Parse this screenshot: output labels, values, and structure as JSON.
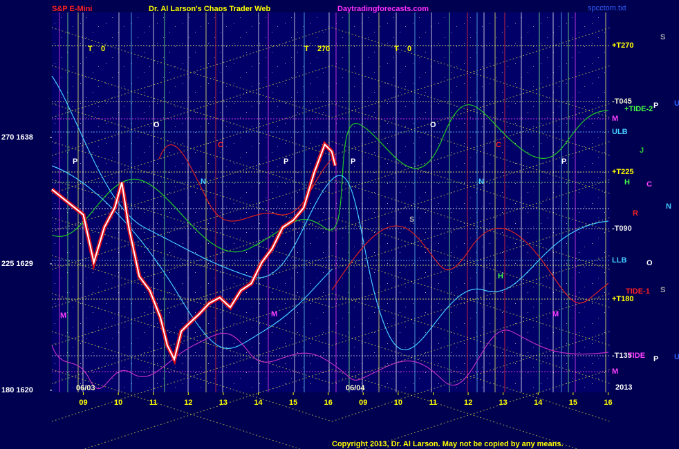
{
  "chart_data": {
    "type": "line",
    "title": "Dr. Al Larson's Chaos Trader Web",
    "symbol": "S&P E-Mini",
    "site": "Daytradingforecasts.com",
    "file": "spcctom.txt",
    "copyright": "Copyright 2013, Dr. Al Larson. May not be copied by any means.",
    "ylim": [
      1619.85,
      1646.9
    ],
    "yticks": [
      {
        "value": 1620,
        "label": "180  1620"
      },
      {
        "value": 1629,
        "label": "225  1629"
      },
      {
        "value": 1638,
        "label": "270  1638"
      }
    ],
    "xlim": [
      -0.9,
      15.05
    ],
    "xticks": [
      {
        "value": 0,
        "label": "09"
      },
      {
        "value": 1,
        "label": "10"
      },
      {
        "value": 2,
        "label": "11"
      },
      {
        "value": 3,
        "label": "12"
      },
      {
        "value": 4,
        "label": "13"
      },
      {
        "value": 5,
        "label": "14"
      },
      {
        "value": 6,
        "label": "15"
      },
      {
        "value": 7,
        "label": "16"
      },
      {
        "value": 8,
        "label": "09"
      },
      {
        "value": 9,
        "label": "10"
      },
      {
        "value": 10,
        "label": "11"
      },
      {
        "value": 11,
        "label": "12"
      },
      {
        "value": 12,
        "label": "13"
      },
      {
        "value": 13,
        "label": "14"
      },
      {
        "value": 14,
        "label": "15"
      },
      {
        "value": 15,
        "label": "16"
      }
    ],
    "dates": [
      "06/03",
      "06/04"
    ],
    "series": [
      {
        "color": "#ffffff",
        "x": [
          -0.9,
          -0.5,
          0,
          0.3,
          0.6,
          0.9,
          1.1,
          1.3,
          1.6,
          1.9,
          2.2,
          2.4,
          2.6,
          2.8,
          3.0,
          3.3,
          3.6,
          3.9,
          4.2,
          4.5,
          4.8,
          5.1,
          5.4,
          5.7,
          6.0,
          6.3,
          6.6,
          6.9,
          7.1,
          7.2
        ],
        "values": [
          1634.3,
          1633.5,
          1632.5,
          1629.1,
          1631.6,
          1633.0,
          1634.8,
          1631.6,
          1628.1,
          1627.1,
          1625.2,
          1623.2,
          1622.2,
          1624.2,
          1624.7,
          1625.4,
          1626.2,
          1626.6,
          1625.9,
          1627.1,
          1627.6,
          1629.1,
          1630.1,
          1631.6,
          1632.1,
          1633.0,
          1635.5,
          1637.5,
          1637.0,
          1636.0
        ]
      }
    ],
    "right_labels": [
      "+T270",
      "-T045",
      "+TIDE-2",
      "M",
      "ULB",
      "+T225",
      "H",
      "-T090",
      "LLB",
      "TIDE-1",
      "+T180",
      "-T135",
      "TIDE",
      "M",
      "2013"
    ],
    "planet_labels": [
      "S",
      "P",
      "U",
      "J",
      "C",
      "R",
      "N",
      "O",
      "S",
      "P",
      "U"
    ],
    "plot_labels": [
      "T    0",
      "T    270",
      "T    0",
      "O",
      "O",
      "P",
      "P",
      "P",
      "P",
      "C",
      "C",
      "N",
      "N",
      "S",
      "M",
      "M",
      "M",
      "H"
    ]
  }
}
